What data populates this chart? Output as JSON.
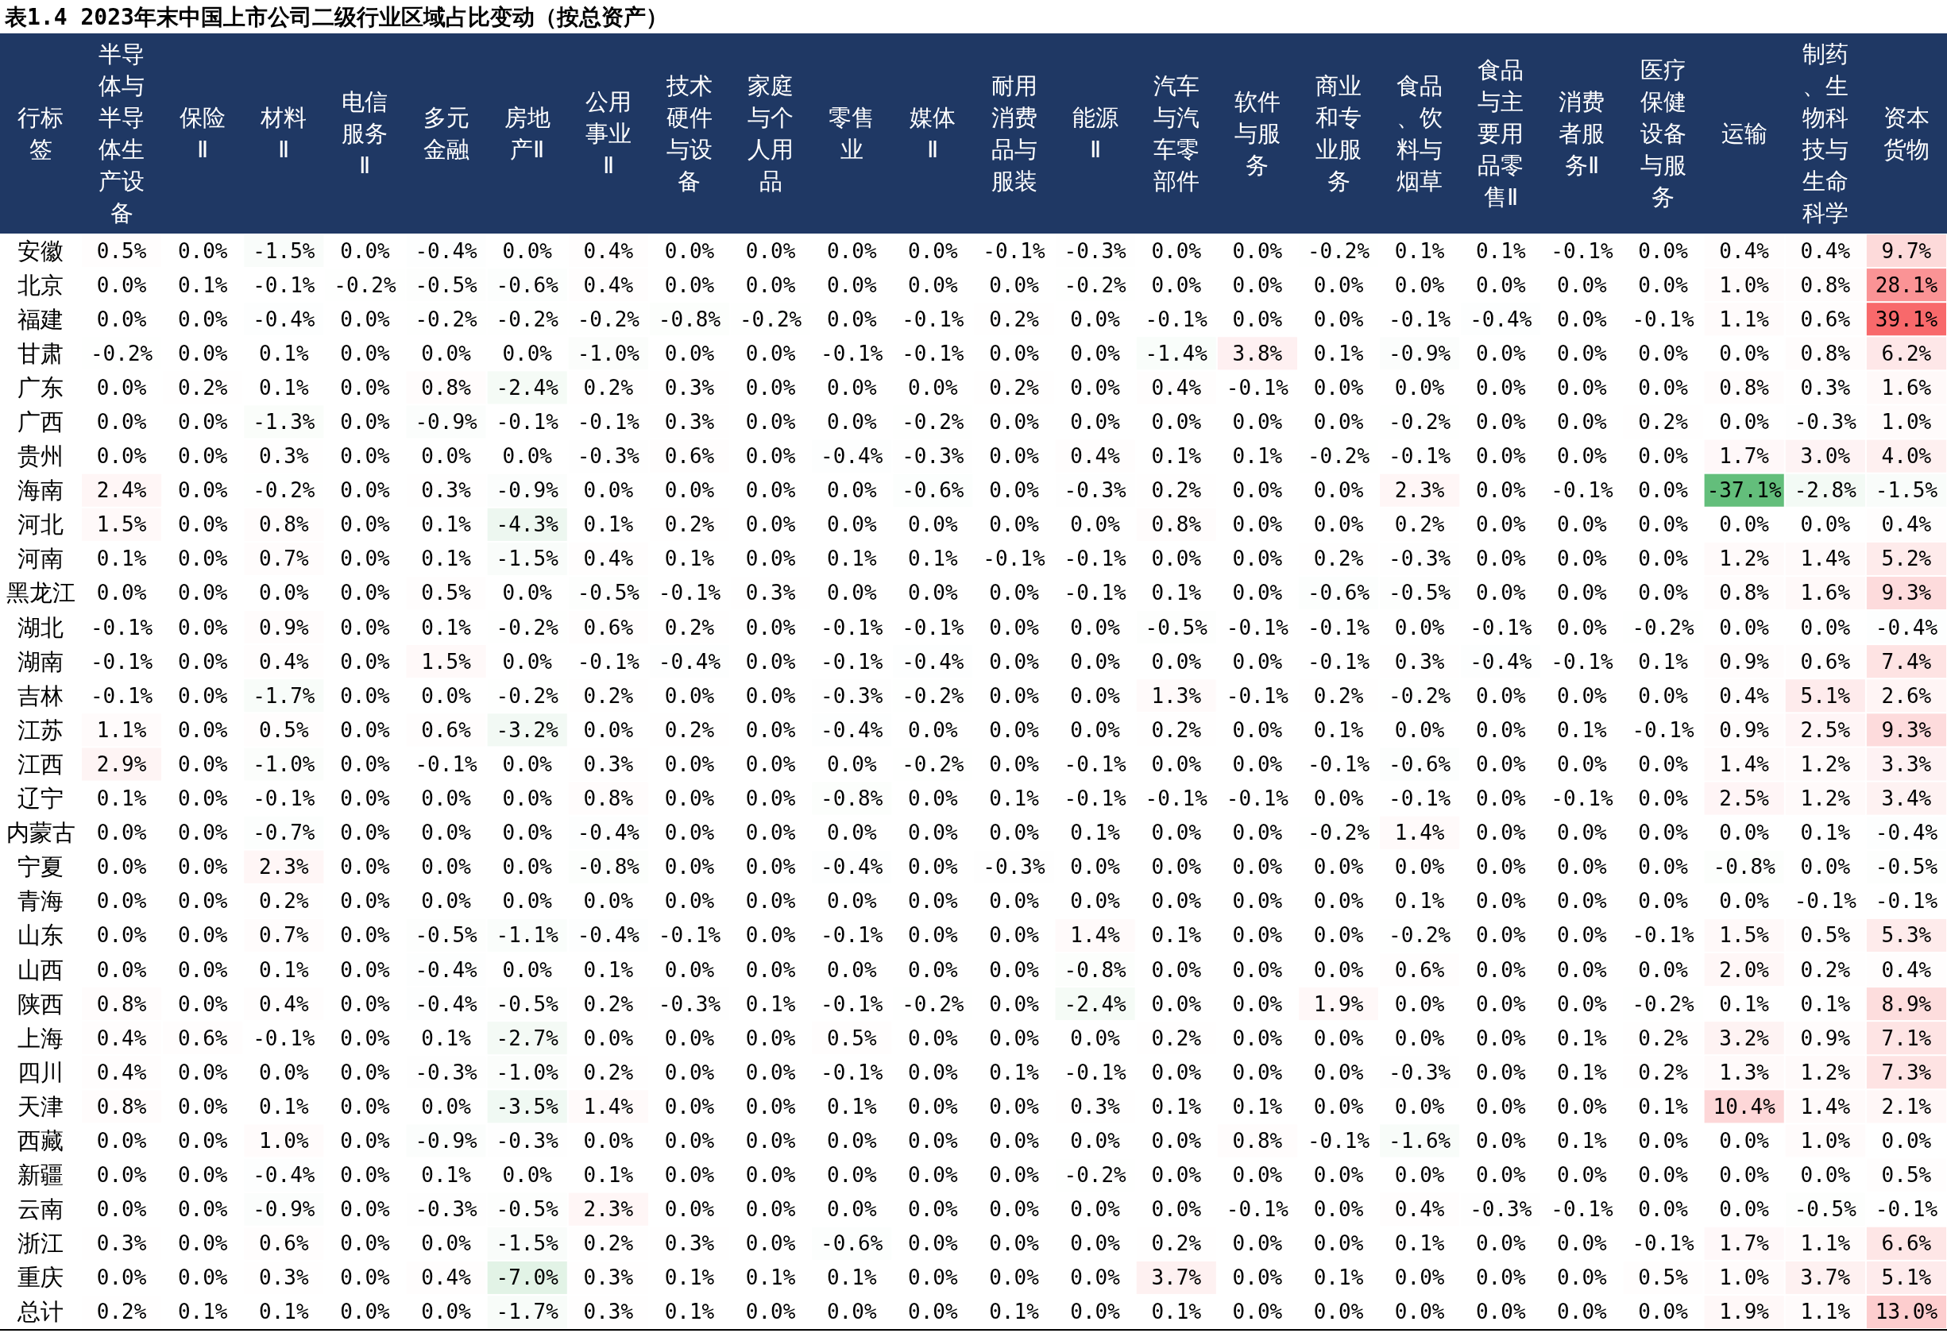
{
  "chart_data": {
    "type": "heatmap",
    "title": "表1.4 2023年末中国上市公司二级行业区域占比变动（按总资产）",
    "ylabel": "行标签",
    "categories": [
      "半导体与半导体生产设备",
      "保险Ⅱ",
      "材料Ⅱ",
      "电信服务Ⅱ",
      "多元金融",
      "房地产Ⅱ",
      "公用事业Ⅱ",
      "技术硬件与设备",
      "家庭与个人用品",
      "零售业",
      "媒体Ⅱ",
      "耐用消费品与服装",
      "能源Ⅱ",
      "汽车与汽车零部件",
      "软件与服务",
      "商业和专业服务",
      "食品、饮料与烟草",
      "食品与主要用品零售Ⅱ",
      "消费者服务Ⅱ",
      "医疗保健设备与服务",
      "运输",
      "制药、生物科技与生命科学",
      "资本货物"
    ],
    "y_categories": [
      "安徽",
      "北京",
      "福建",
      "甘肃",
      "广东",
      "广西",
      "贵州",
      "海南",
      "河北",
      "河南",
      "黑龙江",
      "湖北",
      "湖南",
      "吉林",
      "江苏",
      "江西",
      "辽宁",
      "内蒙古",
      "宁夏",
      "青海",
      "山东",
      "山西",
      "陕西",
      "上海",
      "四川",
      "天津",
      "西藏",
      "新疆",
      "云南",
      "浙江",
      "重庆",
      "总计"
    ],
    "colors": [
      "#63be7b",
      "#ffffff",
      "#f8696b"
    ],
    "cells": [
      [
        0.5,
        0.0,
        -1.5,
        0.0,
        -0.4,
        0.0,
        0.4,
        0.0,
        0.0,
        0.0,
        0.0,
        -0.1,
        -0.3,
        0.0,
        0.0,
        -0.2,
        0.1,
        0.1,
        -0.1,
        0.0,
        0.4,
        0.4,
        9.7
      ],
      [
        0.0,
        0.1,
        -0.1,
        -0.2,
        -0.5,
        -0.6,
        0.4,
        0.0,
        0.0,
        0.0,
        0.0,
        0.0,
        -0.2,
        0.0,
        0.0,
        0.0,
        0.0,
        0.0,
        0.0,
        0.0,
        1.0,
        0.8,
        28.1
      ],
      [
        0.0,
        0.0,
        -0.4,
        0.0,
        -0.2,
        -0.2,
        -0.2,
        -0.8,
        -0.2,
        0.0,
        -0.1,
        0.2,
        0.0,
        -0.1,
        0.0,
        0.0,
        -0.1,
        -0.4,
        0.0,
        -0.1,
        1.1,
        0.6,
        39.1
      ],
      [
        -0.2,
        0.0,
        0.1,
        0.0,
        0.0,
        0.0,
        -1.0,
        0.0,
        0.0,
        -0.1,
        -0.1,
        0.0,
        0.0,
        -1.4,
        3.8,
        0.1,
        -0.9,
        0.0,
        0.0,
        0.0,
        0.0,
        0.8,
        6.2
      ],
      [
        0.0,
        0.2,
        0.1,
        0.0,
        0.8,
        -2.4,
        0.2,
        0.3,
        0.0,
        0.0,
        0.0,
        0.2,
        0.0,
        0.4,
        -0.1,
        0.0,
        0.0,
        0.0,
        0.0,
        0.0,
        0.8,
        0.3,
        1.6
      ],
      [
        0.0,
        0.0,
        -1.3,
        0.0,
        -0.9,
        -0.1,
        -0.1,
        0.3,
        0.0,
        0.0,
        -0.2,
        0.0,
        0.0,
        0.0,
        0.0,
        0.0,
        -0.2,
        0.0,
        0.0,
        0.2,
        0.0,
        -0.3,
        1.0
      ],
      [
        0.0,
        0.0,
        0.3,
        0.0,
        0.0,
        0.0,
        -0.3,
        0.6,
        0.0,
        -0.4,
        -0.3,
        0.0,
        0.4,
        0.1,
        0.1,
        -0.2,
        -0.1,
        0.0,
        0.0,
        0.0,
        1.7,
        3.0,
        4.0
      ],
      [
        2.4,
        0.0,
        -0.2,
        0.0,
        0.3,
        -0.9,
        0.0,
        0.0,
        0.0,
        0.0,
        -0.6,
        0.0,
        -0.3,
        0.2,
        0.0,
        0.0,
        2.3,
        0.0,
        -0.1,
        0.0,
        -37.1,
        -2.8,
        -1.5
      ],
      [
        1.5,
        0.0,
        0.8,
        0.0,
        0.1,
        -4.3,
        0.1,
        0.2,
        0.0,
        0.0,
        0.0,
        0.0,
        0.0,
        0.8,
        0.0,
        0.0,
        0.2,
        0.0,
        0.0,
        0.0,
        0.0,
        0.0,
        0.4
      ],
      [
        0.1,
        0.0,
        0.7,
        0.0,
        0.1,
        -1.5,
        0.4,
        0.1,
        0.0,
        0.1,
        0.1,
        -0.1,
        -0.1,
        0.0,
        0.0,
        0.2,
        -0.3,
        0.0,
        0.0,
        0.0,
        1.2,
        1.4,
        5.2
      ],
      [
        0.0,
        0.0,
        0.0,
        0.0,
        0.5,
        0.0,
        -0.5,
        -0.1,
        0.3,
        0.0,
        0.0,
        0.0,
        -0.1,
        0.1,
        0.0,
        -0.6,
        -0.5,
        0.0,
        0.0,
        0.0,
        0.8,
        1.6,
        9.3
      ],
      [
        -0.1,
        0.0,
        0.9,
        0.0,
        0.1,
        -0.2,
        0.6,
        0.2,
        0.0,
        -0.1,
        -0.1,
        0.0,
        0.0,
        -0.5,
        -0.1,
        -0.1,
        0.0,
        -0.1,
        0.0,
        -0.2,
        0.0,
        0.0,
        -0.4
      ],
      [
        -0.1,
        0.0,
        0.4,
        0.0,
        1.5,
        0.0,
        -0.1,
        -0.4,
        0.0,
        -0.1,
        -0.4,
        0.0,
        0.0,
        0.0,
        0.0,
        -0.1,
        0.3,
        -0.4,
        -0.1,
        0.1,
        0.9,
        0.6,
        7.4
      ],
      [
        -0.1,
        0.0,
        -1.7,
        0.0,
        0.0,
        -0.2,
        0.2,
        0.0,
        0.0,
        -0.3,
        -0.2,
        0.0,
        0.0,
        1.3,
        -0.1,
        0.2,
        -0.2,
        0.0,
        0.0,
        0.0,
        0.4,
        5.1,
        2.6
      ],
      [
        1.1,
        0.0,
        0.5,
        0.0,
        0.6,
        -3.2,
        0.0,
        0.2,
        0.0,
        -0.4,
        0.0,
        0.0,
        0.0,
        0.2,
        0.0,
        0.1,
        0.0,
        0.0,
        0.1,
        -0.1,
        0.9,
        2.5,
        9.3
      ],
      [
        2.9,
        0.0,
        -1.0,
        0.0,
        -0.1,
        0.0,
        0.3,
        0.0,
        0.0,
        0.0,
        -0.2,
        0.0,
        -0.1,
        0.0,
        0.0,
        -0.1,
        -0.6,
        0.0,
        0.0,
        0.0,
        1.4,
        1.2,
        3.3
      ],
      [
        0.1,
        0.0,
        -0.1,
        0.0,
        0.0,
        0.0,
        0.8,
        0.0,
        0.0,
        -0.8,
        0.0,
        0.1,
        -0.1,
        -0.1,
        -0.1,
        0.0,
        -0.1,
        0.0,
        -0.1,
        0.0,
        2.5,
        1.2,
        3.4
      ],
      [
        0.0,
        0.0,
        -0.7,
        0.0,
        0.0,
        0.0,
        -0.4,
        0.0,
        0.0,
        0.0,
        0.0,
        0.0,
        0.1,
        0.0,
        0.0,
        -0.2,
        1.4,
        0.0,
        0.0,
        0.0,
        0.0,
        0.1,
        -0.4
      ],
      [
        0.0,
        0.0,
        2.3,
        0.0,
        0.0,
        0.0,
        -0.8,
        0.0,
        0.0,
        -0.4,
        0.0,
        -0.3,
        0.0,
        0.0,
        0.0,
        0.0,
        0.0,
        0.0,
        0.0,
        0.0,
        -0.8,
        0.0,
        -0.5
      ],
      [
        0.0,
        0.0,
        0.2,
        0.0,
        0.0,
        0.0,
        0.0,
        0.0,
        0.0,
        0.0,
        0.0,
        0.0,
        0.0,
        0.0,
        0.0,
        0.0,
        0.1,
        0.0,
        0.0,
        0.0,
        0.0,
        -0.1,
        -0.1
      ],
      [
        0.0,
        0.0,
        0.7,
        0.0,
        -0.5,
        -1.1,
        -0.4,
        -0.1,
        0.0,
        -0.1,
        0.0,
        0.0,
        1.4,
        0.1,
        0.0,
        0.0,
        -0.2,
        0.0,
        0.0,
        -0.1,
        1.5,
        0.5,
        5.3
      ],
      [
        0.0,
        0.0,
        0.1,
        0.0,
        -0.4,
        0.0,
        0.1,
        0.0,
        0.0,
        0.0,
        0.0,
        0.0,
        -0.8,
        0.0,
        0.0,
        0.0,
        0.6,
        0.0,
        0.0,
        0.0,
        2.0,
        0.2,
        0.4
      ],
      [
        0.8,
        0.0,
        0.4,
        0.0,
        -0.4,
        -0.5,
        0.2,
        -0.3,
        0.1,
        -0.1,
        -0.2,
        0.0,
        -2.4,
        0.0,
        0.0,
        1.9,
        0.0,
        0.0,
        0.0,
        -0.2,
        0.1,
        0.1,
        8.9
      ],
      [
        0.4,
        0.6,
        -0.1,
        0.0,
        0.1,
        -2.7,
        0.0,
        0.0,
        0.0,
        0.5,
        0.0,
        0.0,
        0.0,
        0.2,
        0.0,
        0.0,
        0.0,
        0.0,
        0.1,
        0.2,
        3.2,
        0.9,
        7.1
      ],
      [
        0.4,
        0.0,
        0.0,
        0.0,
        -0.3,
        -1.0,
        0.2,
        0.0,
        0.0,
        -0.1,
        0.0,
        0.1,
        -0.1,
        0.0,
        0.0,
        0.0,
        -0.3,
        0.0,
        0.1,
        0.2,
        1.3,
        1.2,
        7.3
      ],
      [
        0.8,
        0.0,
        0.1,
        0.0,
        0.0,
        -3.5,
        1.4,
        0.0,
        0.0,
        0.1,
        0.0,
        0.0,
        0.3,
        0.1,
        0.1,
        0.0,
        0.0,
        0.0,
        0.0,
        0.1,
        10.4,
        1.4,
        2.1
      ],
      [
        0.0,
        0.0,
        1.0,
        0.0,
        -0.9,
        -0.3,
        0.0,
        0.0,
        0.0,
        0.0,
        0.0,
        0.0,
        0.0,
        0.0,
        0.8,
        -0.1,
        -1.6,
        0.0,
        0.1,
        0.0,
        0.0,
        1.0,
        0.0
      ],
      [
        0.0,
        0.0,
        -0.4,
        0.0,
        0.1,
        0.0,
        0.1,
        0.0,
        0.0,
        0.0,
        0.0,
        0.0,
        -0.2,
        0.0,
        0.0,
        0.0,
        0.0,
        0.0,
        0.0,
        0.0,
        0.0,
        0.0,
        0.5
      ],
      [
        0.0,
        0.0,
        -0.9,
        0.0,
        -0.3,
        -0.5,
        2.3,
        0.0,
        0.0,
        0.0,
        0.0,
        0.0,
        0.0,
        0.0,
        -0.1,
        0.0,
        0.4,
        -0.3,
        -0.1,
        0.0,
        0.0,
        -0.5,
        -0.1
      ],
      [
        0.3,
        0.0,
        0.6,
        0.0,
        0.0,
        -1.5,
        0.2,
        0.3,
        0.0,
        -0.6,
        0.0,
        0.0,
        0.0,
        0.2,
        0.0,
        0.0,
        0.1,
        0.0,
        0.0,
        -0.1,
        1.7,
        1.1,
        6.6
      ],
      [
        0.0,
        0.0,
        0.3,
        0.0,
        0.4,
        -7.0,
        0.3,
        0.1,
        0.1,
        0.1,
        0.0,
        0.0,
        0.0,
        3.7,
        0.0,
        0.1,
        0.0,
        0.0,
        0.0,
        0.5,
        1.0,
        3.7,
        5.1
      ],
      [
        0.2,
        0.1,
        0.1,
        0.0,
        0.0,
        -1.7,
        0.3,
        0.1,
        0.0,
        0.0,
        0.0,
        0.1,
        0.0,
        0.1,
        0.0,
        0.0,
        0.0,
        0.0,
        0.0,
        0.0,
        1.9,
        1.1,
        13.0
      ]
    ],
    "cell_labels": [
      [
        "0.5%",
        "0.0%",
        "-1.5%",
        "0.0%",
        "-0.4%",
        "0.0%",
        "0.4%",
        "0.0%",
        "0.0%",
        "0.0%",
        "0.0%",
        "-0.1%",
        "-0.3%",
        "0.0%",
        "0.0%",
        "-0.2%",
        "0.1%",
        "0.1%",
        "-0.1%",
        "0.0%",
        "0.4%",
        "0.4%",
        "9.7%"
      ],
      [
        "0.0%",
        "0.1%",
        "-0.1%",
        "-0.2%",
        "-0.5%",
        "-0.6%",
        "0.4%",
        "0.0%",
        "0.0%",
        "0.0%",
        "0.0%",
        "0.0%",
        "-0.2%",
        "0.0%",
        "0.0%",
        "0.0%",
        "0.0%",
        "0.0%",
        "0.0%",
        "0.0%",
        "1.0%",
        "0.8%",
        "28.1%"
      ],
      [
        "0.0%",
        "0.0%",
        "-0.4%",
        "0.0%",
        "-0.2%",
        "-0.2%",
        "-0.2%",
        "-0.8%",
        "-0.2%",
        "0.0%",
        "-0.1%",
        "0.2%",
        "0.0%",
        "-0.1%",
        "0.0%",
        "0.0%",
        "-0.1%",
        "-0.4%",
        "0.0%",
        "-0.1%",
        "1.1%",
        "0.6%",
        "39.1%"
      ],
      [
        "-0.2%",
        "0.0%",
        "0.1%",
        "0.0%",
        "0.0%",
        "0.0%",
        "-1.0%",
        "0.0%",
        "0.0%",
        "-0.1%",
        "-0.1%",
        "0.0%",
        "0.0%",
        "-1.4%",
        "3.8%",
        "0.1%",
        "-0.9%",
        "0.0%",
        "0.0%",
        "0.0%",
        "0.0%",
        "0.8%",
        "6.2%"
      ],
      [
        "0.0%",
        "0.2%",
        "0.1%",
        "0.0%",
        "0.8%",
        "-2.4%",
        "0.2%",
        "0.3%",
        "0.0%",
        "0.0%",
        "0.0%",
        "0.2%",
        "0.0%",
        "0.4%",
        "-0.1%",
        "0.0%",
        "0.0%",
        "0.0%",
        "0.0%",
        "0.0%",
        "0.8%",
        "0.3%",
        "1.6%"
      ],
      [
        "0.0%",
        "0.0%",
        "-1.3%",
        "0.0%",
        "-0.9%",
        "-0.1%",
        "-0.1%",
        "0.3%",
        "0.0%",
        "0.0%",
        "-0.2%",
        "0.0%",
        "0.0%",
        "0.0%",
        "0.0%",
        "0.0%",
        "-0.2%",
        "0.0%",
        "0.0%",
        "0.2%",
        "0.0%",
        "-0.3%",
        "1.0%"
      ],
      [
        "0.0%",
        "0.0%",
        "0.3%",
        "0.0%",
        "0.0%",
        "0.0%",
        "-0.3%",
        "0.6%",
        "0.0%",
        "-0.4%",
        "-0.3%",
        "0.0%",
        "0.4%",
        "0.1%",
        "0.1%",
        "-0.2%",
        "-0.1%",
        "0.0%",
        "0.0%",
        "0.0%",
        "1.7%",
        "3.0%",
        "4.0%"
      ],
      [
        "2.4%",
        "0.0%",
        "-0.2%",
        "0.0%",
        "0.3%",
        "-0.9%",
        "0.0%",
        "0.0%",
        "0.0%",
        "0.0%",
        "-0.6%",
        "0.0%",
        "-0.3%",
        "0.2%",
        "0.0%",
        "0.0%",
        "2.3%",
        "0.0%",
        "-0.1%",
        "0.0%",
        "-37.1%",
        "-2.8%",
        "-1.5%"
      ],
      [
        "1.5%",
        "0.0%",
        "0.8%",
        "0.0%",
        "0.1%",
        "-4.3%",
        "0.1%",
        "0.2%",
        "0.0%",
        "0.0%",
        "0.0%",
        "0.0%",
        "0.0%",
        "0.8%",
        "0.0%",
        "0.0%",
        "0.2%",
        "0.0%",
        "0.0%",
        "0.0%",
        "0.0%",
        "0.0%",
        "0.4%"
      ],
      [
        "0.1%",
        "0.0%",
        "0.7%",
        "0.0%",
        "0.1%",
        "-1.5%",
        "0.4%",
        "0.1%",
        "0.0%",
        "0.1%",
        "0.1%",
        "-0.1%",
        "-0.1%",
        "0.0%",
        "0.0%",
        "0.2%",
        "-0.3%",
        "0.0%",
        "0.0%",
        "0.0%",
        "1.2%",
        "1.4%",
        "5.2%"
      ],
      [
        "0.0%",
        "0.0%",
        "0.0%",
        "0.0%",
        "0.5%",
        "0.0%",
        "-0.5%",
        "-0.1%",
        "0.3%",
        "0.0%",
        "0.0%",
        "0.0%",
        "-0.1%",
        "0.1%",
        "0.0%",
        "-0.6%",
        "-0.5%",
        "0.0%",
        "0.0%",
        "0.0%",
        "0.8%",
        "1.6%",
        "9.3%"
      ],
      [
        "-0.1%",
        "0.0%",
        "0.9%",
        "0.0%",
        "0.1%",
        "-0.2%",
        "0.6%",
        "0.2%",
        "0.0%",
        "-0.1%",
        "-0.1%",
        "0.0%",
        "0.0%",
        "-0.5%",
        "-0.1%",
        "-0.1%",
        "0.0%",
        "-0.1%",
        "0.0%",
        "-0.2%",
        "0.0%",
        "0.0%",
        "-0.4%"
      ],
      [
        "-0.1%",
        "0.0%",
        "0.4%",
        "0.0%",
        "1.5%",
        "0.0%",
        "-0.1%",
        "-0.4%",
        "0.0%",
        "-0.1%",
        "-0.4%",
        "0.0%",
        "0.0%",
        "0.0%",
        "0.0%",
        "-0.1%",
        "0.3%",
        "-0.4%",
        "-0.1%",
        "0.1%",
        "0.9%",
        "0.6%",
        "7.4%"
      ],
      [
        "-0.1%",
        "0.0%",
        "-1.7%",
        "0.0%",
        "0.0%",
        "-0.2%",
        "0.2%",
        "0.0%",
        "0.0%",
        "-0.3%",
        "-0.2%",
        "0.0%",
        "0.0%",
        "1.3%",
        "-0.1%",
        "0.2%",
        "-0.2%",
        "0.0%",
        "0.0%",
        "0.0%",
        "0.4%",
        "5.1%",
        "2.6%"
      ],
      [
        "1.1%",
        "0.0%",
        "0.5%",
        "0.0%",
        "0.6%",
        "-3.2%",
        "0.0%",
        "0.2%",
        "0.0%",
        "-0.4%",
        "0.0%",
        "0.0%",
        "0.0%",
        "0.2%",
        "0.0%",
        "0.1%",
        "0.0%",
        "0.0%",
        "0.1%",
        "-0.1%",
        "0.9%",
        "2.5%",
        "9.3%"
      ],
      [
        "2.9%",
        "0.0%",
        "-1.0%",
        "0.0%",
        "-0.1%",
        "0.0%",
        "0.3%",
        "0.0%",
        "0.0%",
        "0.0%",
        "-0.2%",
        "0.0%",
        "-0.1%",
        "0.0%",
        "0.0%",
        "-0.1%",
        "-0.6%",
        "0.0%",
        "0.0%",
        "0.0%",
        "1.4%",
        "1.2%",
        "3.3%"
      ],
      [
        "0.1%",
        "0.0%",
        "-0.1%",
        "0.0%",
        "0.0%",
        "0.0%",
        "0.8%",
        "0.0%",
        "0.0%",
        "-0.8%",
        "0.0%",
        "0.1%",
        "-0.1%",
        "-0.1%",
        "-0.1%",
        "0.0%",
        "-0.1%",
        "0.0%",
        "-0.1%",
        "0.0%",
        "2.5%",
        "1.2%",
        "3.4%"
      ],
      [
        "0.0%",
        "0.0%",
        "-0.7%",
        "0.0%",
        "0.0%",
        "0.0%",
        "-0.4%",
        "0.0%",
        "0.0%",
        "0.0%",
        "0.0%",
        "0.0%",
        "0.1%",
        "0.0%",
        "0.0%",
        "-0.2%",
        "1.4%",
        "0.0%",
        "0.0%",
        "0.0%",
        "0.0%",
        "0.1%",
        "-0.4%"
      ],
      [
        "0.0%",
        "0.0%",
        "2.3%",
        "0.0%",
        "0.0%",
        "0.0%",
        "-0.8%",
        "0.0%",
        "0.0%",
        "-0.4%",
        "0.0%",
        "-0.3%",
        "0.0%",
        "0.0%",
        "0.0%",
        "0.0%",
        "0.0%",
        "0.0%",
        "0.0%",
        "0.0%",
        "-0.8%",
        "0.0%",
        "-0.5%"
      ],
      [
        "0.0%",
        "0.0%",
        "0.2%",
        "0.0%",
        "0.0%",
        "0.0%",
        "0.0%",
        "0.0%",
        "0.0%",
        "0.0%",
        "0.0%",
        "0.0%",
        "0.0%",
        "0.0%",
        "0.0%",
        "0.0%",
        "0.1%",
        "0.0%",
        "0.0%",
        "0.0%",
        "0.0%",
        "-0.1%",
        "-0.1%"
      ],
      [
        "0.0%",
        "0.0%",
        "0.7%",
        "0.0%",
        "-0.5%",
        "-1.1%",
        "-0.4%",
        "-0.1%",
        "0.0%",
        "-0.1%",
        "0.0%",
        "0.0%",
        "1.4%",
        "0.1%",
        "0.0%",
        "0.0%",
        "-0.2%",
        "0.0%",
        "0.0%",
        "-0.1%",
        "1.5%",
        "0.5%",
        "5.3%"
      ],
      [
        "0.0%",
        "0.0%",
        "0.1%",
        "0.0%",
        "-0.4%",
        "0.0%",
        "0.1%",
        "0.0%",
        "0.0%",
        "0.0%",
        "0.0%",
        "0.0%",
        "-0.8%",
        "0.0%",
        "0.0%",
        "0.0%",
        "0.6%",
        "0.0%",
        "0.0%",
        "0.0%",
        "2.0%",
        "0.2%",
        "0.4%"
      ],
      [
        "0.8%",
        "0.0%",
        "0.4%",
        "0.0%",
        "-0.4%",
        "-0.5%",
        "0.2%",
        "-0.3%",
        "0.1%",
        "-0.1%",
        "-0.2%",
        "0.0%",
        "-2.4%",
        "0.0%",
        "0.0%",
        "1.9%",
        "0.0%",
        "0.0%",
        "0.0%",
        "-0.2%",
        "0.1%",
        "0.1%",
        "8.9%"
      ],
      [
        "0.4%",
        "0.6%",
        "-0.1%",
        "0.0%",
        "0.1%",
        "-2.7%",
        "0.0%",
        "0.0%",
        "0.0%",
        "0.5%",
        "0.0%",
        "0.0%",
        "0.0%",
        "0.2%",
        "0.0%",
        "0.0%",
        "0.0%",
        "0.0%",
        "0.1%",
        "0.2%",
        "3.2%",
        "0.9%",
        "7.1%"
      ],
      [
        "0.4%",
        "0.0%",
        "0.0%",
        "0.0%",
        "-0.3%",
        "-1.0%",
        "0.2%",
        "0.0%",
        "0.0%",
        "-0.1%",
        "0.0%",
        "0.1%",
        "-0.1%",
        "0.0%",
        "0.0%",
        "0.0%",
        "-0.3%",
        "0.0%",
        "0.1%",
        "0.2%",
        "1.3%",
        "1.2%",
        "7.3%"
      ],
      [
        "0.8%",
        "0.0%",
        "0.1%",
        "0.0%",
        "0.0%",
        "-3.5%",
        "1.4%",
        "0.0%",
        "0.0%",
        "0.1%",
        "0.0%",
        "0.0%",
        "0.3%",
        "0.1%",
        "0.1%",
        "0.0%",
        "0.0%",
        "0.0%",
        "0.0%",
        "0.1%",
        "10.4%",
        "1.4%",
        "2.1%"
      ],
      [
        "0.0%",
        "0.0%",
        "1.0%",
        "0.0%",
        "-0.9%",
        "-0.3%",
        "0.0%",
        "0.0%",
        "0.0%",
        "0.0%",
        "0.0%",
        "0.0%",
        "0.0%",
        "0.0%",
        "0.8%",
        "-0.1%",
        "-1.6%",
        "0.0%",
        "0.1%",
        "0.0%",
        "0.0%",
        "1.0%",
        "0.0%"
      ],
      [
        "0.0%",
        "0.0%",
        "-0.4%",
        "0.0%",
        "0.1%",
        "0.0%",
        "0.1%",
        "0.0%",
        "0.0%",
        "0.0%",
        "0.0%",
        "0.0%",
        "-0.2%",
        "0.0%",
        "0.0%",
        "0.0%",
        "0.0%",
        "0.0%",
        "0.0%",
        "0.0%",
        "0.0%",
        "0.0%",
        "0.5%"
      ],
      [
        "0.0%",
        "0.0%",
        "-0.9%",
        "0.0%",
        "-0.3%",
        "-0.5%",
        "2.3%",
        "0.0%",
        "0.0%",
        "0.0%",
        "0.0%",
        "0.0%",
        "0.0%",
        "0.0%",
        "-0.1%",
        "0.0%",
        "0.4%",
        "-0.3%",
        "-0.1%",
        "0.0%",
        "0.0%",
        "-0.5%",
        "-0.1%"
      ],
      [
        "0.3%",
        "0.0%",
        "0.6%",
        "0.0%",
        "0.0%",
        "-1.5%",
        "0.2%",
        "0.3%",
        "0.0%",
        "-0.6%",
        "0.0%",
        "0.0%",
        "0.0%",
        "0.2%",
        "0.0%",
        "0.0%",
        "0.1%",
        "0.0%",
        "0.0%",
        "-0.1%",
        "1.7%",
        "1.1%",
        "6.6%"
      ],
      [
        "0.0%",
        "0.0%",
        "0.3%",
        "0.0%",
        "0.4%",
        "-7.0%",
        "0.3%",
        "0.1%",
        "0.1%",
        "0.1%",
        "0.0%",
        "0.0%",
        "0.0%",
        "3.7%",
        "0.0%",
        "0.1%",
        "0.0%",
        "0.0%",
        "0.0%",
        "0.5%",
        "1.0%",
        "3.7%",
        "5.1%"
      ],
      [
        "0.2%",
        "0.1%",
        "0.1%",
        "0.0%",
        "0.0%",
        "-1.7%",
        "0.3%",
        "0.1%",
        "0.0%",
        "0.0%",
        "0.0%",
        "0.1%",
        "0.0%",
        "0.1%",
        "0.0%",
        "0.0%",
        "0.0%",
        "0.0%",
        "0.0%",
        "0.0%",
        "1.9%",
        "1.1%",
        "13.0%"
      ]
    ]
  }
}
